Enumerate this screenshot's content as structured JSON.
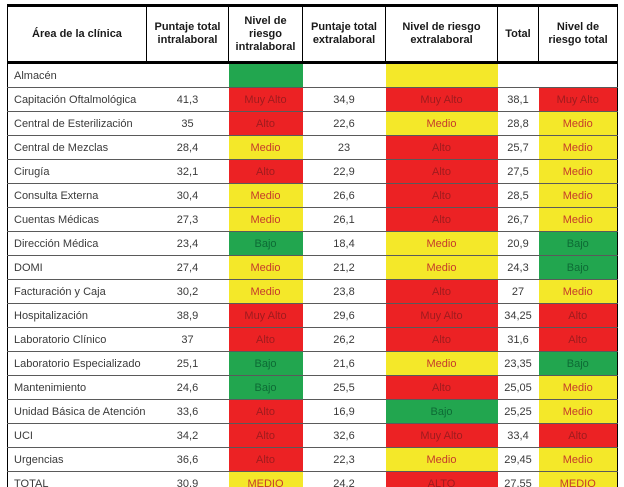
{
  "colors": {
    "risk_red": "#EC2224",
    "risk_red_text": "#9E1B1E",
    "risk_yellow": "#F4E829",
    "risk_yellow_text": "#C53B2B",
    "risk_green": "#22A64F",
    "risk_green_text": "#0D6B35"
  },
  "table": {
    "columns": [
      "Área de la clínica",
      "Puntaje total intralaboral",
      "Nivel de riesgo intralaboral",
      "Puntaje total extralaboral",
      "Nivel de riesgo extralaboral",
      "Total",
      "Nivel de riesgo total"
    ],
    "rows": [
      {
        "cells": [
          {
            "text": "Almacén",
            "bg": "white"
          },
          {
            "text": "",
            "bg": "white"
          },
          {
            "text": "",
            "bg": "green"
          },
          {
            "text": "",
            "bg": "white"
          },
          {
            "text": "",
            "bg": "yellow"
          },
          {
            "text": "",
            "bg": "white"
          },
          {
            "text": "",
            "bg": "white"
          }
        ]
      },
      {
        "cells": [
          {
            "text": "Capitación Oftalmológica",
            "bg": "white"
          },
          {
            "text": "41,3",
            "bg": "white"
          },
          {
            "text": "Muy Alto",
            "bg": "red"
          },
          {
            "text": "34,9",
            "bg": "white"
          },
          {
            "text": "Muy Alto",
            "bg": "red"
          },
          {
            "text": "38,1",
            "bg": "white"
          },
          {
            "text": "Muy Alto",
            "bg": "red"
          }
        ]
      },
      {
        "cells": [
          {
            "text": "Central de Esterilización",
            "bg": "white"
          },
          {
            "text": "35",
            "bg": "white"
          },
          {
            "text": "Alto",
            "bg": "red"
          },
          {
            "text": "22,6",
            "bg": "white"
          },
          {
            "text": "Medio",
            "bg": "yellow"
          },
          {
            "text": "28,8",
            "bg": "white"
          },
          {
            "text": "Medio",
            "bg": "yellow"
          }
        ]
      },
      {
        "cells": [
          {
            "text": "Central de Mezclas",
            "bg": "white"
          },
          {
            "text": "28,4",
            "bg": "white"
          },
          {
            "text": "Medio",
            "bg": "yellow"
          },
          {
            "text": "23",
            "bg": "white"
          },
          {
            "text": "Alto",
            "bg": "red"
          },
          {
            "text": "25,7",
            "bg": "white"
          },
          {
            "text": "Medio",
            "bg": "yellow"
          }
        ]
      },
      {
        "cells": [
          {
            "text": "Cirugía",
            "bg": "white"
          },
          {
            "text": "32,1",
            "bg": "white"
          },
          {
            "text": "Alto",
            "bg": "red"
          },
          {
            "text": "22,9",
            "bg": "white"
          },
          {
            "text": "Alto",
            "bg": "red"
          },
          {
            "text": "27,5",
            "bg": "white"
          },
          {
            "text": "Medio",
            "bg": "yellow"
          }
        ]
      },
      {
        "cells": [
          {
            "text": "Consulta Externa",
            "bg": "white"
          },
          {
            "text": "30,4",
            "bg": "white"
          },
          {
            "text": "Medio",
            "bg": "yellow"
          },
          {
            "text": "26,6",
            "bg": "white"
          },
          {
            "text": "Alto",
            "bg": "red"
          },
          {
            "text": "28,5",
            "bg": "white"
          },
          {
            "text": "Medio",
            "bg": "yellow"
          }
        ]
      },
      {
        "cells": [
          {
            "text": "Cuentas Médicas",
            "bg": "white"
          },
          {
            "text": "27,3",
            "bg": "white"
          },
          {
            "text": "Medio",
            "bg": "yellow"
          },
          {
            "text": "26,1",
            "bg": "white"
          },
          {
            "text": "Alto",
            "bg": "red"
          },
          {
            "text": "26,7",
            "bg": "white"
          },
          {
            "text": "Medio",
            "bg": "yellow"
          }
        ]
      },
      {
        "cells": [
          {
            "text": "Dirección Médica",
            "bg": "white"
          },
          {
            "text": "23,4",
            "bg": "white"
          },
          {
            "text": "Bajo",
            "bg": "green"
          },
          {
            "text": "18,4",
            "bg": "white"
          },
          {
            "text": "Medio",
            "bg": "yellow"
          },
          {
            "text": "20,9",
            "bg": "white"
          },
          {
            "text": "Bajo",
            "bg": "green"
          }
        ]
      },
      {
        "cells": [
          {
            "text": "DOMI",
            "bg": "white"
          },
          {
            "text": "27,4",
            "bg": "white"
          },
          {
            "text": "Medio",
            "bg": "yellow"
          },
          {
            "text": "21,2",
            "bg": "white"
          },
          {
            "text": "Medio",
            "bg": "yellow"
          },
          {
            "text": "24,3",
            "bg": "white"
          },
          {
            "text": "Bajo",
            "bg": "green"
          }
        ]
      },
      {
        "cells": [
          {
            "text": "Facturación y Caja",
            "bg": "white"
          },
          {
            "text": "30,2",
            "bg": "white"
          },
          {
            "text": "Medio",
            "bg": "yellow"
          },
          {
            "text": "23,8",
            "bg": "white"
          },
          {
            "text": "Alto",
            "bg": "red"
          },
          {
            "text": "27",
            "bg": "white"
          },
          {
            "text": "Medio",
            "bg": "yellow"
          }
        ]
      },
      {
        "cells": [
          {
            "text": "Hospitalización",
            "bg": "white"
          },
          {
            "text": "38,9",
            "bg": "white"
          },
          {
            "text": "Muy Alto",
            "bg": "red"
          },
          {
            "text": "29,6",
            "bg": "white"
          },
          {
            "text": "Muy Alto",
            "bg": "red"
          },
          {
            "text": "34,25",
            "bg": "white"
          },
          {
            "text": "Alto",
            "bg": "red"
          }
        ]
      },
      {
        "cells": [
          {
            "text": "Laboratorio Clínico",
            "bg": "white"
          },
          {
            "text": "37",
            "bg": "white"
          },
          {
            "text": "Alto",
            "bg": "red"
          },
          {
            "text": "26,2",
            "bg": "white"
          },
          {
            "text": "Alto",
            "bg": "red"
          },
          {
            "text": "31,6",
            "bg": "white"
          },
          {
            "text": "Alto",
            "bg": "red"
          }
        ]
      },
      {
        "cells": [
          {
            "text": "Laboratorio Especializado",
            "bg": "white"
          },
          {
            "text": "25,1",
            "bg": "white"
          },
          {
            "text": "Bajo",
            "bg": "green"
          },
          {
            "text": "21,6",
            "bg": "white"
          },
          {
            "text": "Medio",
            "bg": "yellow"
          },
          {
            "text": "23,35",
            "bg": "white"
          },
          {
            "text": "Bajo",
            "bg": "green"
          }
        ]
      },
      {
        "cells": [
          {
            "text": "Mantenimiento",
            "bg": "white"
          },
          {
            "text": "24,6",
            "bg": "white"
          },
          {
            "text": "Bajo",
            "bg": "green"
          },
          {
            "text": "25,5",
            "bg": "white"
          },
          {
            "text": "Alto",
            "bg": "red"
          },
          {
            "text": "25,05",
            "bg": "white"
          },
          {
            "text": "Medio",
            "bg": "yellow"
          }
        ]
      },
      {
        "cells": [
          {
            "text": "Unidad Básica de Atención",
            "bg": "white"
          },
          {
            "text": "33,6",
            "bg": "white"
          },
          {
            "text": "Alto",
            "bg": "red"
          },
          {
            "text": "16,9",
            "bg": "white"
          },
          {
            "text": "Bajo",
            "bg": "green"
          },
          {
            "text": "25,25",
            "bg": "white"
          },
          {
            "text": "Medio",
            "bg": "yellow"
          }
        ]
      },
      {
        "cells": [
          {
            "text": "UCI",
            "bg": "white"
          },
          {
            "text": "34,2",
            "bg": "white"
          },
          {
            "text": "Alto",
            "bg": "red"
          },
          {
            "text": "32,6",
            "bg": "white"
          },
          {
            "text": "Muy Alto",
            "bg": "red"
          },
          {
            "text": "33,4",
            "bg": "white"
          },
          {
            "text": "Alto",
            "bg": "red"
          }
        ]
      },
      {
        "cells": [
          {
            "text": "Urgencias",
            "bg": "white"
          },
          {
            "text": "36,6",
            "bg": "white"
          },
          {
            "text": "Alto",
            "bg": "red"
          },
          {
            "text": "22,3",
            "bg": "white"
          },
          {
            "text": "Medio",
            "bg": "yellow"
          },
          {
            "text": "29,45",
            "bg": "white"
          },
          {
            "text": "Medio",
            "bg": "yellow"
          }
        ]
      },
      {
        "cells": [
          {
            "text": "TOTAL",
            "bg": "white"
          },
          {
            "text": "30,9",
            "bg": "white"
          },
          {
            "text": "MEDIO",
            "bg": "yellow"
          },
          {
            "text": "24,2",
            "bg": "white"
          },
          {
            "text": "ALTO",
            "bg": "red"
          },
          {
            "text": "27,55",
            "bg": "white"
          },
          {
            "text": "MEDIO",
            "bg": "yellow"
          }
        ]
      }
    ]
  }
}
